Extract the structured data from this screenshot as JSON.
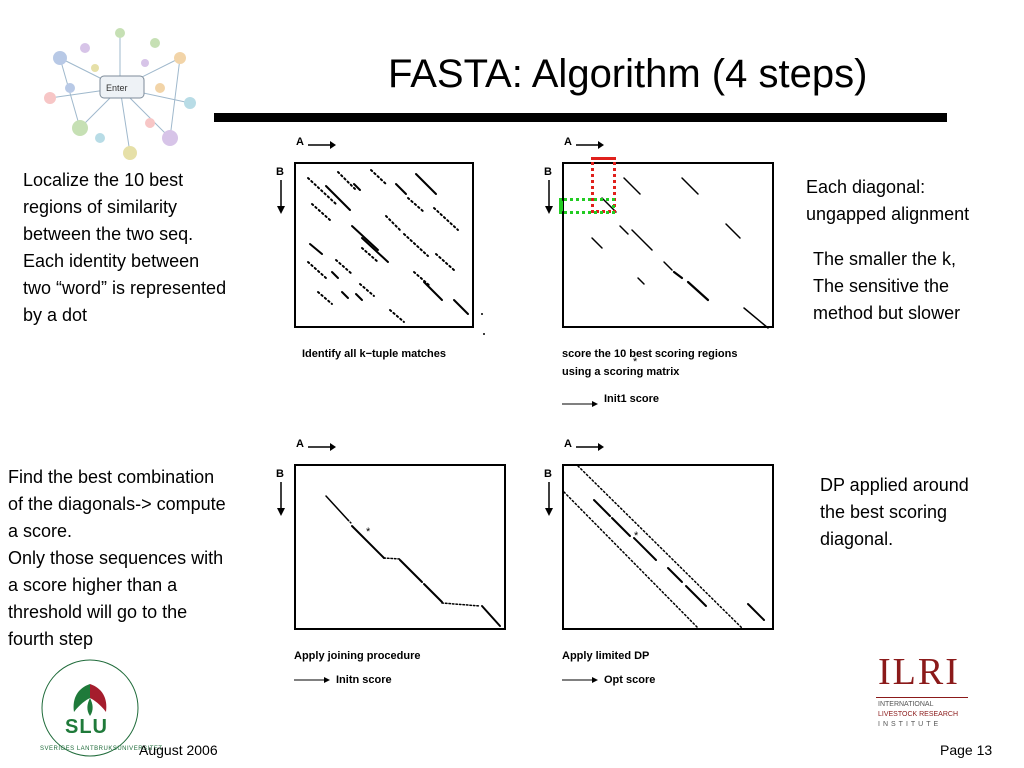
{
  "slide": {
    "title": "FASTA: Algorithm (4 steps)",
    "date": "August 2006",
    "page": "Page 13"
  },
  "left_notes": {
    "step1": [
      "Localize the 10 best",
      "regions of similarity",
      "between the two seq.",
      "Each identity between",
      "two “word” is represented",
      "by a dot"
    ],
    "step3": [
      "Find the best combination",
      "of the diagonals-> compute",
      "a score.",
      "Only those sequences with",
      "a score higher than a",
      "threshold will go to the",
      "fourth step"
    ]
  },
  "right_notes": {
    "step2a": [
      "Each diagonal:",
      "ungapped alignment"
    ],
    "step2b": [
      "The smaller the k,",
      "The sensitive the",
      "method but slower"
    ],
    "step4": [
      "DP applied around",
      "the best scoring",
      "diagonal."
    ]
  },
  "panels": {
    "axis_a": "A",
    "axis_b": "B",
    "p1_caption": "Identify all k−tuple matches",
    "p2_caption_1": "score the 10 best scoring regions",
    "p2_caption_2": "using a scoring matrix",
    "p2_score": "Init1 score",
    "p3_caption": "Apply joining procedure",
    "p3_score": "Initn score",
    "p4_caption": "Apply limited DP",
    "p4_score": "Opt score",
    "star": "*"
  },
  "logos": {
    "slu_text": "SLU",
    "slu_ring": "SVERIGES LANTBRUKSUNIVERSITET",
    "ilri_main": "ILRI",
    "ilri_line1": "INTERNATIONAL",
    "ilri_line2": "LIVESTOCK RESEARCH",
    "ilri_line3": "INSTITUTE",
    "network_key": "Enter"
  },
  "colors": {
    "highlight_red": "#e0201c",
    "highlight_green": "#22cc22",
    "ilri_red": "#8b1a1a"
  }
}
